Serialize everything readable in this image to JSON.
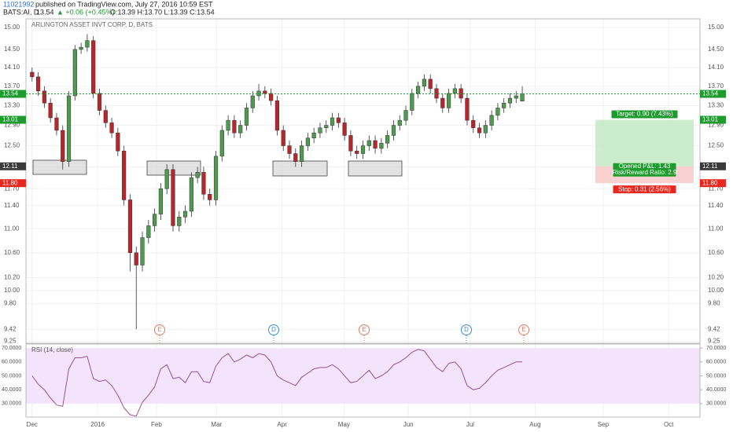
{
  "header": {
    "author": "11021992",
    "published": "published on TradingView.com, July 27, 2016 10:59 EST",
    "symbol": "BATS:AI, D",
    "last": "13.54",
    "change": "▲ +0.06 (+0.45%)",
    "ohlc": "O:13.39 H:13.70 L:13.39 C:13.54"
  },
  "events": [
    "E",
    "D",
    "E",
    "D",
    "E"
  ],
  "chart_data": [
    {
      "type": "candlestick",
      "title": "ARLINGTON ASSET INVT CORP, D, BATS",
      "log_scale": true,
      "grid": true,
      "up_color": "#4e9a4e",
      "down_color": "#b8262c",
      "open": [
        14.0,
        13.9,
        13.6,
        13.35,
        13.05,
        12.8,
        12.2,
        13.5,
        14.5,
        14.55,
        14.7,
        13.55,
        13.2,
        12.95,
        12.75,
        12.4,
        11.5,
        10.6,
        10.4,
        10.85,
        11.05,
        11.25,
        11.7,
        12.05,
        11.05,
        11.2,
        11.3,
        11.9,
        12.0,
        11.6,
        11.5,
        12.3,
        12.8,
        13.0,
        12.75,
        12.9,
        13.25,
        13.5,
        13.6,
        13.55,
        13.4,
        12.8,
        12.5,
        12.35,
        12.2,
        12.5,
        12.65,
        12.75,
        12.85,
        12.9,
        13.05,
        12.95,
        12.7,
        12.4,
        12.35,
        12.5,
        12.6,
        12.45,
        12.55,
        12.7,
        12.9,
        13.0,
        13.2,
        13.55,
        13.7,
        13.85,
        13.65,
        13.45,
        13.25,
        13.55,
        13.65,
        13.45,
        13.0,
        12.85,
        12.75,
        12.9,
        13.1,
        13.25,
        13.35,
        13.45,
        13.39
      ],
      "high": [
        14.1,
        14.0,
        13.7,
        13.45,
        13.15,
        12.9,
        13.6,
        14.6,
        14.65,
        14.85,
        14.8,
        13.65,
        13.3,
        13.05,
        12.85,
        12.5,
        11.6,
        10.7,
        10.95,
        11.15,
        11.35,
        11.8,
        12.15,
        12.15,
        11.3,
        11.4,
        12.0,
        12.1,
        12.1,
        11.7,
        12.4,
        12.9,
        13.1,
        13.1,
        13.0,
        13.35,
        13.6,
        13.75,
        13.7,
        13.65,
        13.5,
        12.9,
        12.6,
        12.45,
        12.6,
        12.75,
        12.85,
        12.95,
        13.0,
        13.15,
        13.15,
        13.05,
        12.8,
        12.5,
        12.6,
        12.7,
        12.7,
        12.65,
        12.8,
        13.0,
        13.1,
        13.3,
        13.65,
        13.8,
        13.95,
        13.95,
        13.75,
        13.55,
        13.65,
        13.75,
        13.75,
        13.55,
        13.1,
        12.95,
        13.0,
        13.2,
        13.35,
        13.45,
        13.55,
        13.6,
        13.7
      ],
      "low": [
        13.8,
        13.5,
        13.25,
        12.95,
        12.7,
        12.05,
        12.1,
        13.4,
        14.4,
        14.45,
        13.45,
        13.1,
        12.85,
        12.65,
        12.3,
        11.4,
        10.3,
        9.42,
        10.3,
        10.75,
        10.95,
        11.15,
        11.6,
        10.95,
        10.95,
        11.1,
        11.2,
        11.8,
        11.5,
        11.4,
        11.4,
        12.2,
        12.7,
        12.65,
        12.65,
        12.8,
        13.15,
        13.4,
        13.45,
        13.3,
        12.7,
        12.4,
        12.25,
        12.1,
        12.1,
        12.4,
        12.55,
        12.65,
        12.75,
        12.8,
        12.85,
        12.6,
        12.3,
        12.25,
        12.25,
        12.4,
        12.35,
        12.35,
        12.45,
        12.6,
        12.8,
        12.9,
        13.1,
        13.45,
        13.6,
        13.55,
        13.35,
        13.15,
        13.15,
        13.45,
        13.35,
        12.9,
        12.75,
        12.65,
        12.65,
        12.8,
        13.0,
        13.15,
        13.25,
        13.35,
        13.39
      ],
      "close": [
        13.9,
        13.6,
        13.35,
        13.05,
        12.8,
        12.2,
        13.5,
        14.5,
        14.55,
        14.7,
        13.55,
        13.2,
        12.95,
        12.75,
        12.4,
        11.5,
        10.6,
        10.4,
        10.85,
        11.05,
        11.25,
        11.7,
        12.05,
        11.05,
        11.2,
        11.3,
        11.9,
        12.0,
        11.6,
        11.5,
        12.3,
        12.8,
        13.0,
        12.75,
        12.9,
        13.25,
        13.5,
        13.6,
        13.55,
        13.4,
        12.8,
        12.5,
        12.35,
        12.2,
        12.5,
        12.65,
        12.75,
        12.85,
        12.9,
        13.05,
        12.95,
        12.7,
        12.4,
        12.35,
        12.5,
        12.6,
        12.45,
        12.55,
        12.7,
        12.9,
        13.0,
        13.2,
        13.55,
        13.7,
        13.85,
        13.65,
        13.45,
        13.25,
        13.55,
        13.65,
        13.45,
        13.0,
        12.85,
        12.75,
        12.9,
        13.1,
        13.25,
        13.35,
        13.45,
        13.5,
        13.54
      ],
      "xlim": [
        -1,
        109
      ],
      "xticks": [
        {
          "value": 0,
          "label": "Dec"
        },
        {
          "value": 10.7,
          "label": "2016"
        },
        {
          "value": 20.3,
          "label": "Feb"
        },
        {
          "value": 30.1,
          "label": "Mar"
        },
        {
          "value": 40.8,
          "label": "Apr"
        },
        {
          "value": 50.9,
          "label": "May"
        },
        {
          "value": 61.4,
          "label": "Jun"
        },
        {
          "value": 71.5,
          "label": "Jul"
        },
        {
          "value": 82.1,
          "label": "Aug"
        },
        {
          "value": 93.2,
          "label": "Sep"
        },
        {
          "value": 103.9,
          "label": "Oct"
        }
      ],
      "ylim": [
        9.22,
        15.2
      ],
      "yticks": [
        {
          "value": 15,
          "label": "15.00"
        },
        {
          "value": 14.5,
          "label": "14.50"
        },
        {
          "value": 14.1,
          "label": "14.10"
        },
        {
          "value": 13.7,
          "label": "13.70"
        },
        {
          "value": 13.3,
          "label": "13.30"
        },
        {
          "value": 12.9,
          "label": "12.90"
        },
        {
          "value": 12.5,
          "label": "12.50"
        },
        {
          "value": 12.1,
          "label": "12.10"
        },
        {
          "value": 11.7,
          "label": "11.70"
        },
        {
          "value": 11.4,
          "label": "11.40"
        },
        {
          "value": 11,
          "label": "11.00"
        },
        {
          "value": 10.6,
          "label": "10.60"
        },
        {
          "value": 10.2,
          "label": "10.20"
        },
        {
          "value": 10,
          "label": "10.00"
        },
        {
          "value": 9.8,
          "label": "9.80"
        },
        {
          "value": 9.42,
          "label": "9.42"
        },
        {
          "value": 9.25,
          "label": "9.25"
        }
      ],
      "badges": [
        {
          "value": 13.54,
          "label": "13.54",
          "color": "#1e9a2e",
          "dotted": true
        },
        {
          "value": 13.01,
          "label": "13.01",
          "color": "#1e9a2e"
        },
        {
          "value": 12.11,
          "label": "12.11",
          "color": "#3a3a3a"
        },
        {
          "value": 11.8,
          "label": "11.80",
          "color": "#e8281e"
        }
      ],
      "position": {
        "entry": 12.11,
        "target": 13.01,
        "stop": 11.8,
        "target_text": "Target: 0.90 (7.43%)",
        "pnl_text": "Opened P&L: 1.43",
        "rr_text": "Risk/Reward Ratio: 2.9",
        "stop_text": "Stop: 0.31 (2.56%)"
      }
    },
    {
      "type": "line",
      "title": "RSI (14, close)",
      "color": "#9b4f96",
      "band": [
        30,
        70
      ],
      "band_color": "#f3e4fb",
      "values": [
        50,
        44,
        40,
        34,
        29,
        28,
        55,
        63,
        63,
        64,
        48,
        46,
        47,
        43,
        36,
        27,
        22,
        21,
        31,
        36,
        42,
        55,
        58,
        48,
        49,
        45,
        53,
        53,
        46,
        45,
        57,
        63,
        66,
        60,
        62,
        65,
        63,
        66,
        65,
        60,
        50,
        47,
        45,
        43,
        49,
        52,
        55,
        56,
        56,
        58,
        55,
        50,
        45,
        46,
        50,
        54,
        48,
        50,
        53,
        58,
        60,
        63,
        67,
        69,
        68,
        62,
        56,
        53,
        59,
        60,
        55,
        43,
        40,
        41,
        45,
        50,
        54,
        56,
        58,
        60,
        60
      ],
      "ylim": [
        20.3,
        72.9
      ],
      "yticks": [
        {
          "value": 70,
          "label": "70.0000"
        },
        {
          "value": 60,
          "label": "60.0000"
        },
        {
          "value": 50,
          "label": "50.0000"
        },
        {
          "value": 40,
          "label": "40.0000"
        },
        {
          "value": 30,
          "label": "30.0000"
        }
      ]
    }
  ]
}
